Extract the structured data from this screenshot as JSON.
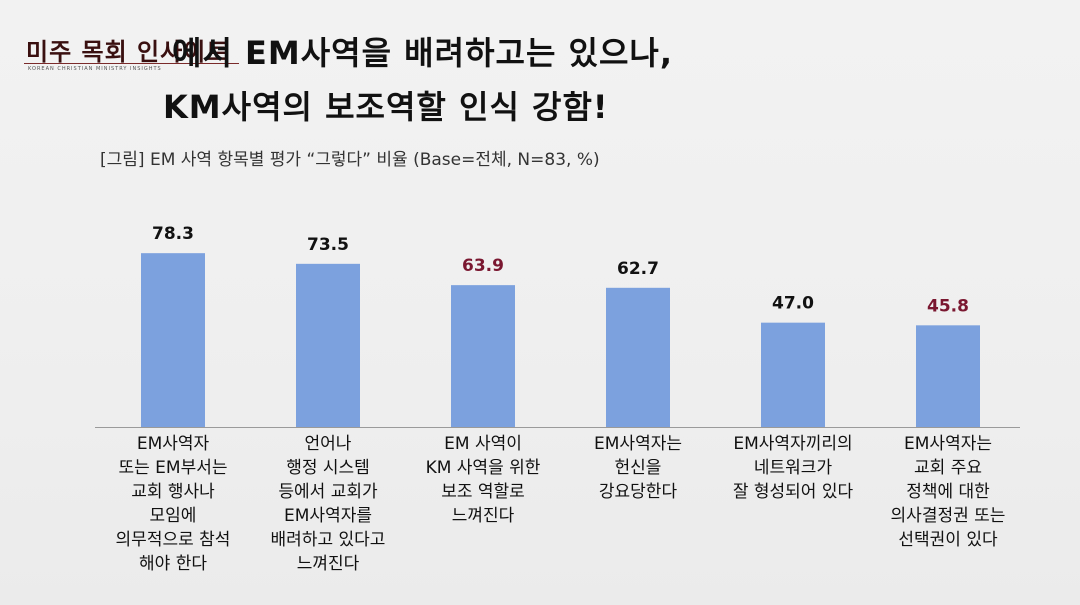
{
  "header": {
    "logo_text": "미주 목회 인사이트",
    "logo_subtext": "KOREAN CHRISTIAN MINISTRY INSIGHTS",
    "title_line1": "에서 EM사역을 배려하고는 있으나,",
    "title_line2": "KM사역의 보조역할 인식 강함!",
    "subtitle": "[그림] EM 사역 항목별 평가 “그렇다” 비율 (Base=전체, N=83, %)"
  },
  "colors": {
    "bar": "#7ca1de",
    "value_default": "#111111",
    "value_highlight": "#7a1730"
  },
  "chart_data": {
    "type": "bar",
    "title": "[그림] EM 사역 항목별 평가 “그렇다” 비율 (Base=전체, N=83, %)",
    "categories": [
      "EM사역자\n또는 EM부서는\n교회 행사나\n모임에\n의무적으로 참석\n해야 한다",
      "언어나\n행정 시스템\n등에서 교회가\nEM사역자를\n배려하고 있다고\n느껴진다",
      "EM 사역이\nKM 사역을 위한\n보조 역할로\n느껴진다",
      "EM사역자는\n헌신을\n강요당한다",
      "EM사역자끼리의\n네트워크가\n잘 형성되어 있다",
      "EM사역자는\n교회 주요\n정책에 대한\n의사결정권 또는\n선택권이 있다"
    ],
    "values": [
      78.3,
      73.5,
      63.9,
      62.7,
      47.0,
      45.8
    ],
    "value_labels": [
      "78.3",
      "73.5",
      "63.9",
      "62.7",
      "47.0",
      "45.8"
    ],
    "highlighted": [
      false,
      false,
      true,
      false,
      false,
      true
    ],
    "ylim": [
      0,
      100
    ],
    "grid": false,
    "legend": "none",
    "xlabel": "",
    "ylabel": ""
  }
}
